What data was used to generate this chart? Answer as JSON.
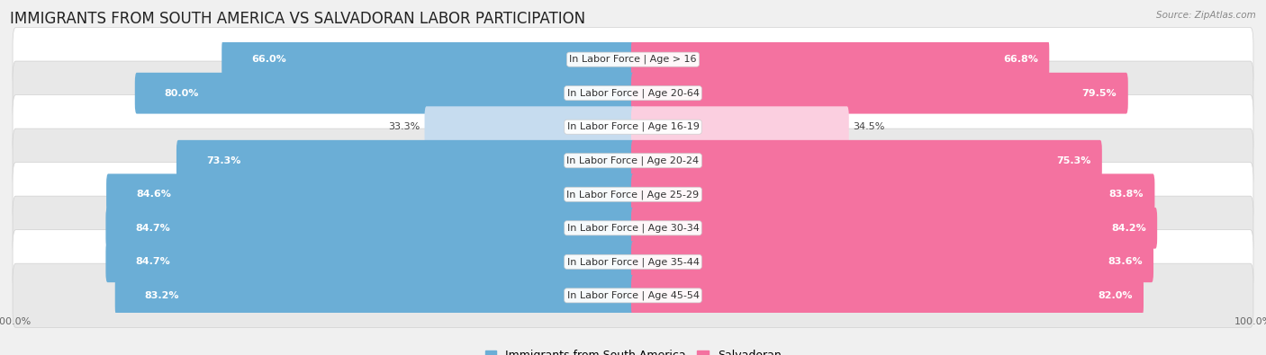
{
  "title": "IMMIGRANTS FROM SOUTH AMERICA VS SALVADORAN LABOR PARTICIPATION",
  "source": "Source: ZipAtlas.com",
  "categories": [
    "In Labor Force | Age > 16",
    "In Labor Force | Age 20-64",
    "In Labor Force | Age 16-19",
    "In Labor Force | Age 20-24",
    "In Labor Force | Age 25-29",
    "In Labor Force | Age 30-34",
    "In Labor Force | Age 35-44",
    "In Labor Force | Age 45-54"
  ],
  "south_america_values": [
    66.0,
    80.0,
    33.3,
    73.3,
    84.6,
    84.7,
    84.7,
    83.2
  ],
  "salvadoran_values": [
    66.8,
    79.5,
    34.5,
    75.3,
    83.8,
    84.2,
    83.6,
    82.0
  ],
  "blue_color": "#6BAED6",
  "pink_color": "#F472A0",
  "blue_light": "#C6DCEF",
  "pink_light": "#FBCFE0",
  "bg_color": "#F0F0F0",
  "row_bg_white": "#FFFFFF",
  "row_bg_gray": "#E8E8E8",
  "title_color": "#222222",
  "legend_blue": "#6BAED6",
  "legend_pink": "#F472A0",
  "max_value": 100.0,
  "bar_height": 0.62,
  "font_size_title": 12,
  "font_size_label": 8,
  "font_size_value": 8,
  "font_size_legend": 9,
  "font_size_axis": 8
}
